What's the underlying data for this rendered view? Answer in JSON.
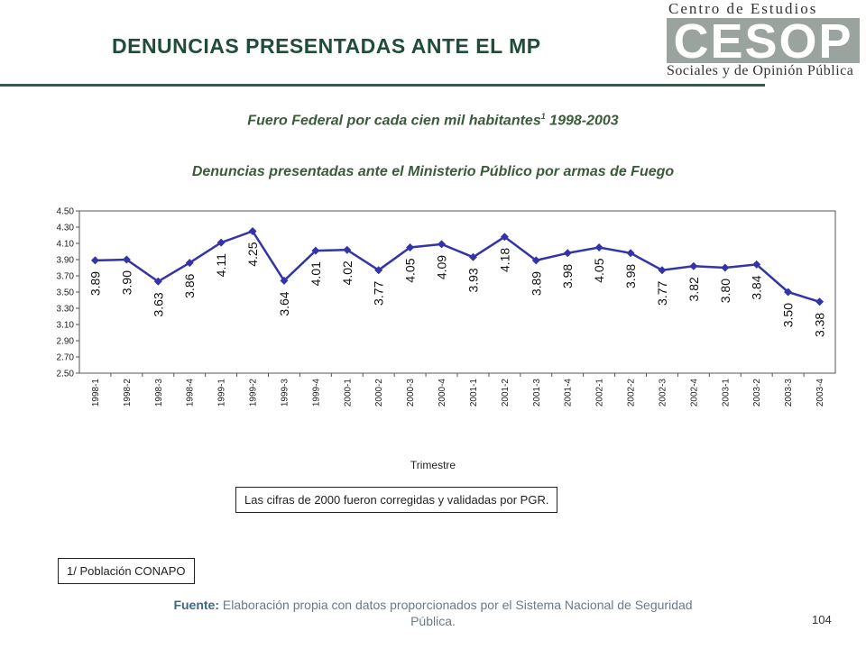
{
  "header": {
    "title": "DENUNCIAS PRESENTADAS ANTE EL MP",
    "logo_top": "Centro de Estudios",
    "logo_mark": "CESOP",
    "logo_bottom": "Sociales y de Opinión Pública"
  },
  "subtitle1": {
    "text": "Fuero Federal por cada cien mil habitantes",
    "sup": "1",
    "years": " 1998-2003"
  },
  "subtitle2": "Denuncias presentadas ante el Ministerio Público por armas de Fuego",
  "chart_data": {
    "type": "line",
    "categories": [
      "1998-1",
      "1998-2",
      "1998-3",
      "1998-4",
      "1999-1",
      "1999-2",
      "1999-3",
      "1999-4",
      "2000-1",
      "2000-2",
      "2000-3",
      "2000-4",
      "2001-1",
      "2001-2",
      "2001-3",
      "2001-4",
      "2002-1",
      "2002-2",
      "2002-3",
      "2002-4",
      "2003-1",
      "2003-2",
      "2003-3",
      "2003-4"
    ],
    "values": [
      3.89,
      3.9,
      3.63,
      3.86,
      4.11,
      4.25,
      3.64,
      4.01,
      4.02,
      3.77,
      4.05,
      4.09,
      3.93,
      4.18,
      3.89,
      3.98,
      4.05,
      3.98,
      3.77,
      3.82,
      3.8,
      3.84,
      3.5,
      3.38
    ],
    "labels": [
      "3.89",
      "3.90",
      "3.63",
      "3.86",
      "4.11",
      "4.25",
      "3.64",
      "4.01",
      "4.02",
      "3.77",
      "4.05",
      "4.09",
      "3.93",
      "4.18",
      "3.89",
      "3.98",
      "4.05",
      "3.98",
      "3.77",
      "3.82",
      "3.80",
      "3.84",
      "3.50",
      "3.38"
    ],
    "yticks": [
      "4.50",
      "4.30",
      "4.10",
      "3.90",
      "3.70",
      "3.50",
      "3.30",
      "3.10",
      "2.90",
      "2.70",
      "2.50"
    ],
    "ylim": [
      2.5,
      4.5
    ],
    "xlabel": "Trimestre",
    "ylabel": "",
    "color": "#3333aa",
    "grid": false,
    "legend": "none"
  },
  "note": "Las cifras de 2000 fueron corregidas y validadas por PGR.",
  "footnote": "1/ Población CONAPO",
  "source": {
    "label": "Fuente:",
    "text": " Elaboración propia con datos proporcionados por el Sistema Nacional de Seguridad Pública."
  },
  "page_number": "104"
}
